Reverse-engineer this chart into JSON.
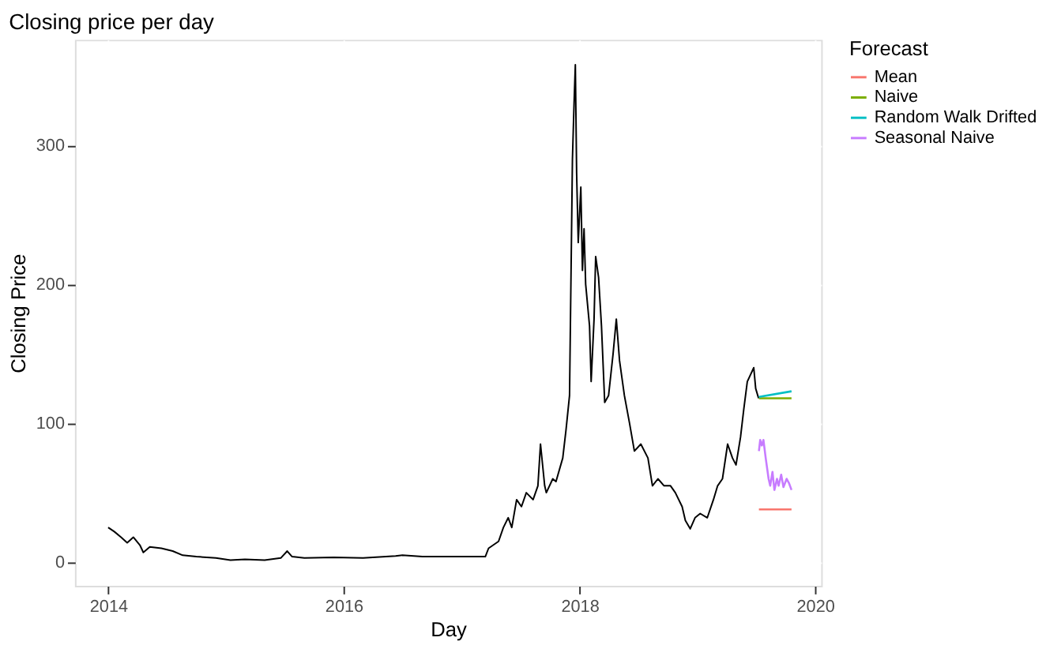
{
  "chart_data": {
    "type": "line",
    "title": "Closing price per day",
    "xlabel": "Day",
    "ylabel": "Closing Price",
    "legend_title": "Forecast",
    "legend": "right",
    "grid": true,
    "xlim": [
      "2013-09-20",
      "2020-01-20"
    ],
    "ylim": [
      -17,
      376
    ],
    "xticks": [
      {
        "value": "2014-01-01",
        "label": "2014"
      },
      {
        "value": "2016-01-01",
        "label": "2016"
      },
      {
        "value": "2018-01-01",
        "label": "2018"
      },
      {
        "value": "2020-01-01",
        "label": "2020"
      }
    ],
    "yticks": [
      0,
      100,
      200,
      300
    ],
    "series": [
      {
        "color": "#000000",
        "x": [
          "2014-01-01",
          "2014-01-20",
          "2014-02-10",
          "2014-03-01",
          "2014-03-20",
          "2014-04-10",
          "2014-04-20",
          "2014-05-10",
          "2014-06-15",
          "2014-07-20",
          "2014-08-20",
          "2014-10-01",
          "2014-12-01",
          "2015-01-15",
          "2015-03-01",
          "2015-05-01",
          "2015-06-20",
          "2015-07-10",
          "2015-07-25",
          "2015-09-01",
          "2015-12-01",
          "2016-03-01",
          "2016-06-10",
          "2016-07-01",
          "2016-09-01",
          "2016-12-01",
          "2017-02-01",
          "2017-03-15",
          "2017-03-25",
          "2017-04-25",
          "2017-05-10",
          "2017-05-25",
          "2017-06-05",
          "2017-06-20",
          "2017-07-05",
          "2017-07-20",
          "2017-08-10",
          "2017-08-25",
          "2017-09-02",
          "2017-09-15",
          "2017-09-20",
          "2017-10-10",
          "2017-10-20",
          "2017-11-10",
          "2017-11-20",
          "2017-12-01",
          "2017-12-10",
          "2017-12-15",
          "2017-12-19",
          "2017-12-23",
          "2017-12-28",
          "2018-01-05",
          "2018-01-10",
          "2018-01-15",
          "2018-01-20",
          "2018-02-01",
          "2018-02-06",
          "2018-02-15",
          "2018-02-20",
          "2018-03-01",
          "2018-03-10",
          "2018-03-20",
          "2018-04-01",
          "2018-04-15",
          "2018-04-25",
          "2018-05-05",
          "2018-05-20",
          "2018-06-05",
          "2018-06-20",
          "2018-07-10",
          "2018-08-01",
          "2018-08-15",
          "2018-09-01",
          "2018-09-20",
          "2018-10-10",
          "2018-10-25",
          "2018-11-15",
          "2018-11-25",
          "2018-12-10",
          "2018-12-25",
          "2019-01-10",
          "2019-02-01",
          "2019-02-20",
          "2019-03-05",
          "2019-03-20",
          "2019-04-05",
          "2019-04-20",
          "2019-05-01",
          "2019-05-15",
          "2019-05-25",
          "2019-06-05",
          "2019-06-25",
          "2019-07-01",
          "2019-07-10"
        ],
        "values": [
          25,
          22,
          18,
          14,
          18,
          12,
          7,
          11,
          10,
          8,
          5,
          4,
          3,
          1.5,
          2,
          1.5,
          3,
          8,
          4,
          3,
          3.5,
          3,
          4.5,
          5,
          4,
          4,
          4,
          4,
          10,
          15,
          25,
          32,
          25,
          45,
          40,
          50,
          45,
          55,
          85,
          55,
          50,
          60,
          58,
          75,
          95,
          120,
          290,
          330,
          358,
          280,
          230,
          270,
          210,
          240,
          200,
          170,
          130,
          175,
          220,
          205,
          170,
          115,
          120,
          150,
          175,
          145,
          120,
          100,
          80,
          85,
          75,
          55,
          60,
          55,
          55,
          50,
          40,
          30,
          24,
          32,
          35,
          32,
          45,
          55,
          60,
          85,
          75,
          70,
          90,
          110,
          130,
          140,
          125,
          118
        ]
      },
      {
        "name": "Mean",
        "color": "#f8766d",
        "x": [
          "2019-07-11",
          "2019-10-20"
        ],
        "values": [
          38,
          38
        ]
      },
      {
        "name": "Naive",
        "color": "#7cae00",
        "x": [
          "2019-07-11",
          "2019-10-20"
        ],
        "values": [
          118,
          118
        ]
      },
      {
        "name": "Random Walk Drifted",
        "color": "#00bfc4",
        "x": [
          "2019-07-11",
          "2019-10-20"
        ],
        "values": [
          119,
          123
        ]
      },
      {
        "name": "Seasonal Naive",
        "color": "#c77cff",
        "x": [
          "2019-07-11",
          "2019-07-15",
          "2019-07-20",
          "2019-07-25",
          "2019-08-01",
          "2019-08-10",
          "2019-08-15",
          "2019-08-22",
          "2019-08-28",
          "2019-09-05",
          "2019-09-10",
          "2019-09-18",
          "2019-09-25",
          "2019-10-05",
          "2019-10-12",
          "2019-10-20"
        ],
        "values": [
          80,
          88,
          84,
          88,
          75,
          60,
          55,
          65,
          52,
          60,
          55,
          63,
          54,
          60,
          57,
          52
        ]
      }
    ]
  }
}
